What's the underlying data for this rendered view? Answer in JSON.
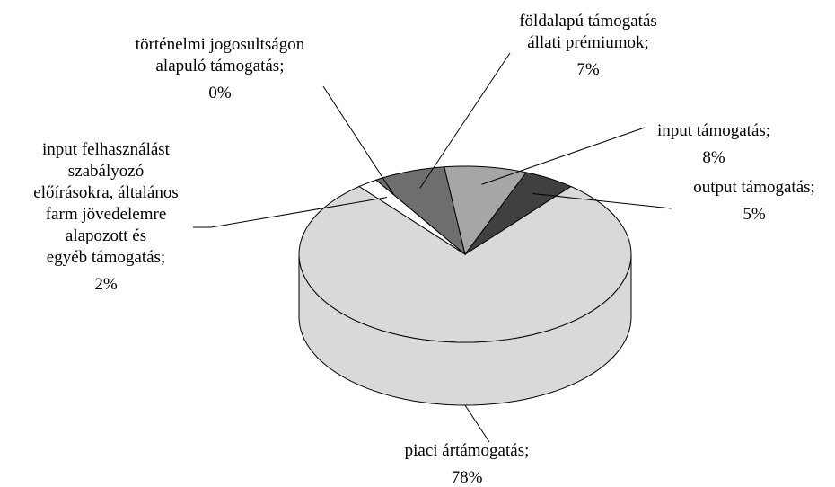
{
  "chart_data": {
    "type": "pie3d",
    "categories": [
      [
        "piaci ártámogatás;"
      ],
      [
        "input felhasználást",
        "szabályozó",
        "előírásokra, általános",
        "farm jövedelemre",
        "alapozott és",
        "egyéb támogatás;"
      ],
      [
        "történelmi jogosultságon",
        "alapuló támogatás;"
      ],
      [
        "földalapú támogatás",
        "állati prémiumok;"
      ],
      [
        "input támogatás;"
      ],
      [
        "output támogatás;"
      ]
    ],
    "values": [
      78,
      2,
      0,
      7,
      8,
      5
    ],
    "value_labels": [
      "78%",
      "2%",
      "0%",
      "7%",
      "8%",
      "5%"
    ],
    "colors": [
      "#d9d9d9",
      "#ffffff",
      "#1a1a1a",
      "#6e6e6e",
      "#a6a6a6",
      "#404040"
    ]
  }
}
